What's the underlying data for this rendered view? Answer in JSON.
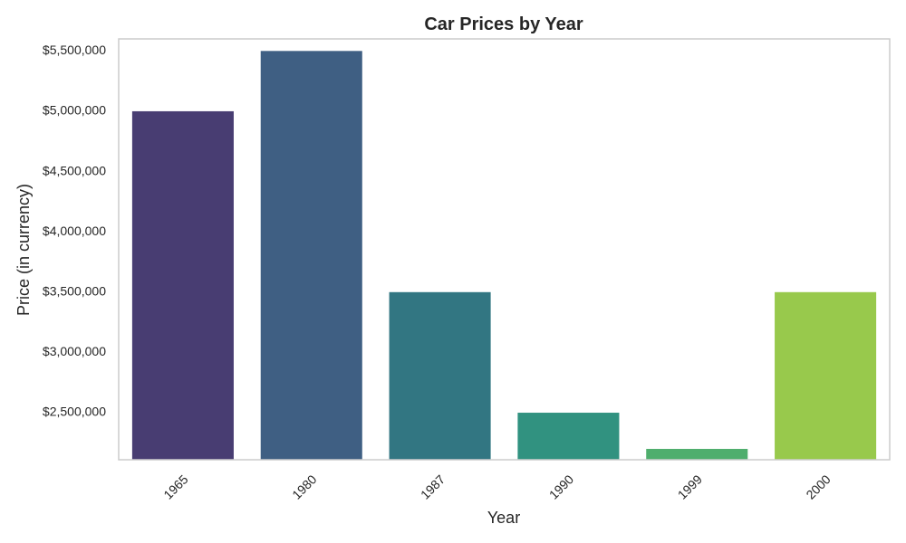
{
  "chart_data": {
    "type": "bar",
    "title": "Car Prices by Year",
    "xlabel": "Year",
    "ylabel": "Price (in currency)",
    "categories": [
      "1965",
      "1980",
      "1987",
      "1990",
      "1999",
      "2000"
    ],
    "values": [
      5000000,
      5500000,
      3500000,
      2500000,
      2200000,
      3500000
    ],
    "colors": [
      "#483D72",
      "#3F5F83",
      "#327682",
      "#319280",
      "#4FAE6D",
      "#98C94C"
    ],
    "ylim": [
      2110000,
      5600000
    ],
    "yticks": [
      2500000,
      3000000,
      3500000,
      4000000,
      4500000,
      5000000,
      5500000
    ],
    "ytick_labels": [
      "$2,500,000",
      "$3,000,000",
      "$3,500,000",
      "$4,000,000",
      "$4,500,000",
      "$5,000,000",
      "$5,500,000"
    ],
    "grid": false,
    "frame_color": "#cccccc",
    "xtick_rotation": "45 degrees"
  }
}
